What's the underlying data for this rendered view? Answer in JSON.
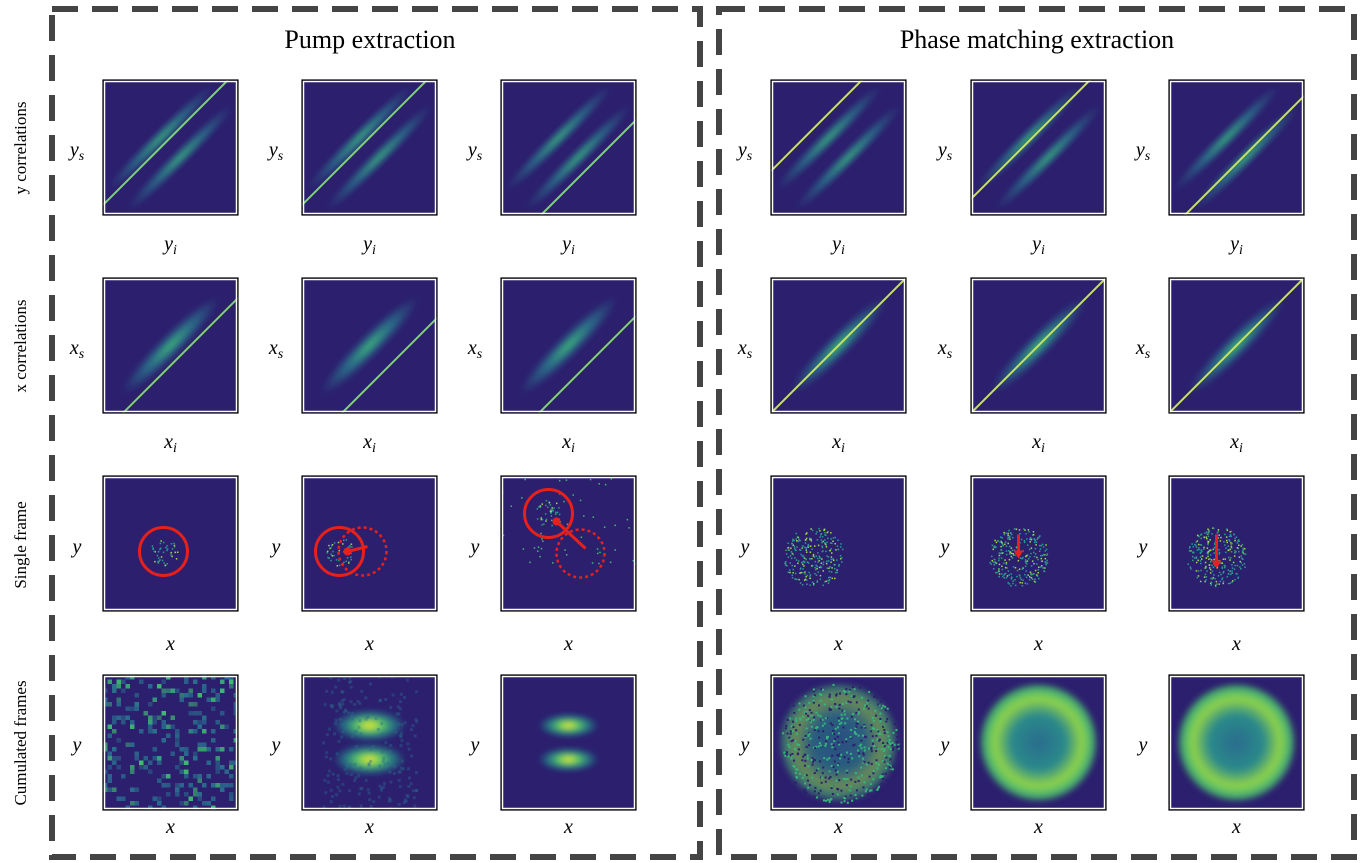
{
  "groups": [
    {
      "title": "Pump extraction"
    },
    {
      "title": "Phase matching extraction"
    }
  ],
  "rows": [
    {
      "label": "y correlations",
      "ylabel": {
        "var": "y",
        "sub": "s"
      },
      "xlabel": {
        "var": "y",
        "sub": "i"
      }
    },
    {
      "label": "x correlations",
      "ylabel": {
        "var": "x",
        "sub": "s"
      },
      "xlabel": {
        "var": "x",
        "sub": "i"
      }
    },
    {
      "label": "Single frame",
      "ylabel": {
        "var": "y"
      },
      "xlabel": {
        "var": "x"
      }
    },
    {
      "label": "Cumulated frames",
      "ylabel": {
        "var": "y"
      },
      "xlabel": {
        "var": "x"
      }
    }
  ]
}
